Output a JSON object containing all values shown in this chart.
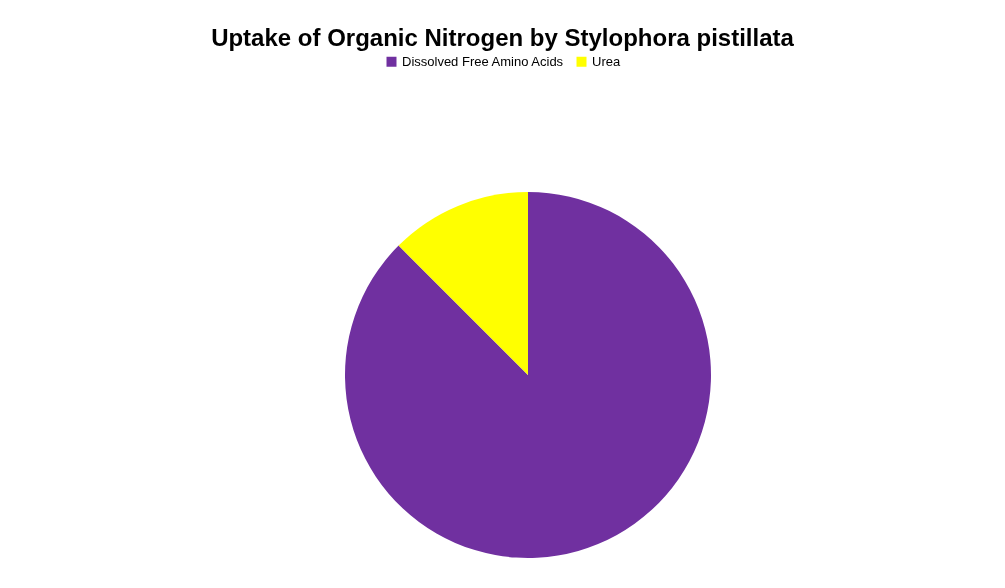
{
  "chart_data": {
    "type": "pie",
    "title": "Uptake of Organic Nitrogen by Stylophora pistillata",
    "categories": [
      "Dissolved Free Amino Acids",
      "Urea"
    ],
    "values": [
      87.5,
      12.5
    ],
    "colors": [
      "#7030a0",
      "#ffff00"
    ],
    "legend": "top"
  }
}
